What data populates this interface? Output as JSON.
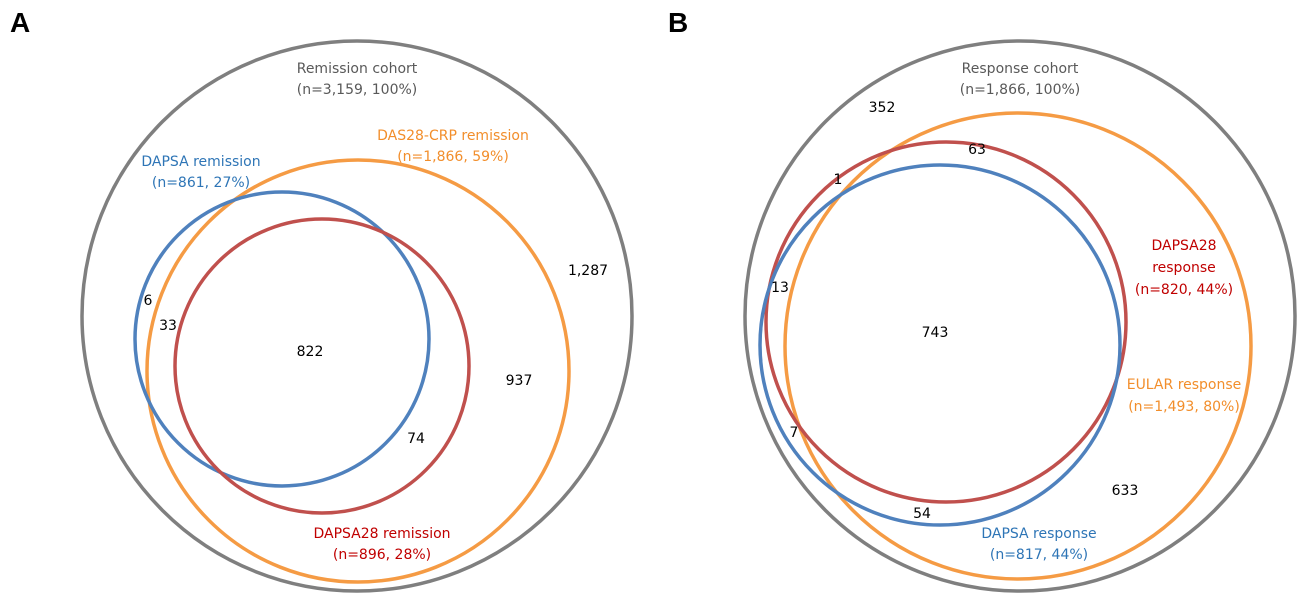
{
  "colors": {
    "gray": "#7f7f7f",
    "orange": "#f59b44",
    "red": "#c0504d",
    "blue": "#4f81bd",
    "gray_text": "#595959",
    "orange_text": "#f28e2b",
    "red_text": "#c00000",
    "blue_text": "#2e75b6"
  },
  "panel_a": {
    "letter": "A",
    "cohort": {
      "name": "Remission cohort",
      "stats": "(n=3,159, 100%)"
    },
    "das28": {
      "name": "DAS28-CRP remission",
      "stats": "(n=1,866, 59%)"
    },
    "dapsa": {
      "name": "DAPSA remission",
      "stats": "(n=861, 27%)"
    },
    "dapsa28": {
      "name": "DAPSA28 remission",
      "stats": "(n=896, 28%)"
    },
    "counts": {
      "outside_only": "1,287",
      "das28_only": "937",
      "dapsa_only": "6",
      "dapsa_das28": "33",
      "all_three": "822",
      "dapsa28_das28": "74"
    }
  },
  "panel_b": {
    "letter": "B",
    "cohort": {
      "name": "Response cohort",
      "stats": "(n=1,866, 100%)"
    },
    "dapsa28": {
      "name1": "DAPSA28",
      "name2": "response",
      "stats": "(n=820, 44%)"
    },
    "eular": {
      "name": "EULAR response",
      "stats": "(n=1,493, 80%)"
    },
    "dapsa": {
      "name": "DAPSA response",
      "stats": "(n=817, 44%)"
    },
    "counts": {
      "outside_only": "352",
      "dapsa28_only": "63",
      "dapsa28_dapsa": "1",
      "dapsa28_dapsa_noeular": "13",
      "all_three": "743",
      "dapsa_only_left": "7",
      "dapsa_eular": "54",
      "eular_only": "633"
    }
  }
}
